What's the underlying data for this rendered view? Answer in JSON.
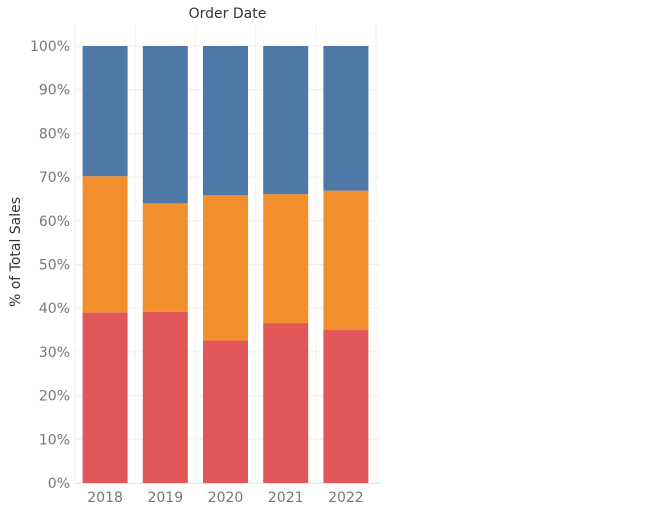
{
  "chart_data": {
    "type": "bar",
    "stacked": true,
    "column_header": "Order Date",
    "ylabel": "% of Total Sales",
    "categories": [
      "2018",
      "2019",
      "2020",
      "2021",
      "2022"
    ],
    "series": [
      {
        "color": "#e15759",
        "values": [
          39.0,
          39.2,
          32.6,
          36.6,
          35.0
        ]
      },
      {
        "color": "#f28e2b",
        "values": [
          31.2,
          24.8,
          33.3,
          29.5,
          31.9
        ]
      },
      {
        "color": "#4e79a7",
        "values": [
          29.8,
          36.0,
          34.1,
          33.9,
          33.1
        ]
      }
    ],
    "ylim": [
      0,
      100
    ],
    "yticks": [
      "0%",
      "10%",
      "20%",
      "30%",
      "40%",
      "50%",
      "60%",
      "70%",
      "80%",
      "90%",
      "100%"
    ],
    "grid": true
  }
}
